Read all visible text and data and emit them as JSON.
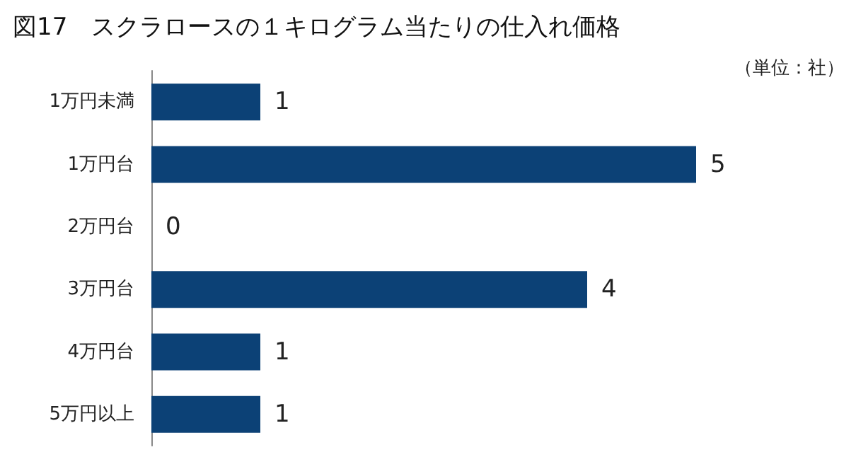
{
  "chart_data": {
    "type": "bar",
    "orientation": "horizontal",
    "title": "図17　スクラロースの１キログラム当たりの仕入れ価格",
    "annotations": [
      "（単位：社）"
    ],
    "categories": [
      "1万円未満",
      "1万円台",
      "2万円台",
      "3万円台",
      "4万円台",
      "5万円以上"
    ],
    "values": [
      1,
      5,
      0,
      4,
      1,
      1
    ],
    "color": "#0c4176",
    "data_labels": true
  }
}
